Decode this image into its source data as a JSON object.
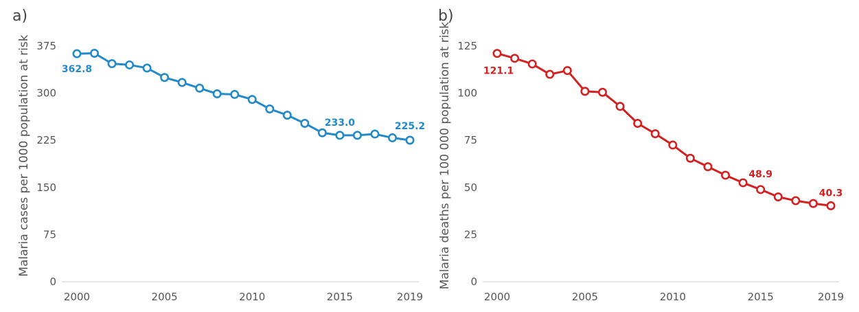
{
  "chart_data": [
    {
      "type": "line",
      "panel_label": "a)",
      "title": "",
      "xlabel": "",
      "ylabel": "Malaria cases per 1000 population at risk",
      "color": "#2389c8",
      "ylim": [
        0,
        375
      ],
      "yticks": [
        0,
        75,
        150,
        225,
        300,
        375
      ],
      "xticks": [
        2000,
        2005,
        2010,
        2015,
        2019
      ],
      "x": [
        2000,
        2001,
        2002,
        2003,
        2004,
        2005,
        2006,
        2007,
        2008,
        2009,
        2010,
        2011,
        2012,
        2013,
        2014,
        2015,
        2016,
        2017,
        2018,
        2019
      ],
      "series": [
        {
          "values": [
            362.8,
            363.5,
            347,
            345,
            340,
            325,
            317,
            308,
            299,
            298,
            290,
            275,
            265,
            252,
            237,
            233.0,
            233,
            235,
            229,
            225.2
          ]
        }
      ],
      "data_labels": [
        {
          "x": 2000,
          "y": 362.8,
          "text": "362.8"
        },
        {
          "x": 2015,
          "y": 233.0,
          "text": "233.0"
        },
        {
          "x": 2019,
          "y": 225.2,
          "text": "225.2"
        }
      ]
    },
    {
      "type": "line",
      "panel_label": "b)",
      "title": "",
      "xlabel": "",
      "ylabel": "Malaria deaths per 100 000 population at risk",
      "color": "#d42020",
      "ylim": [
        0,
        125
      ],
      "yticks": [
        0,
        25,
        50,
        75,
        100,
        125
      ],
      "xticks": [
        2000,
        2005,
        2010,
        2015,
        2019
      ],
      "x": [
        2000,
        2001,
        2002,
        2003,
        2004,
        2005,
        2006,
        2007,
        2008,
        2009,
        2010,
        2011,
        2012,
        2013,
        2014,
        2015,
        2016,
        2017,
        2018,
        2019
      ],
      "series": [
        {
          "values": [
            121.1,
            118.5,
            115.5,
            110,
            112,
            101,
            100.5,
            93,
            84,
            78.5,
            72.5,
            65.5,
            61,
            56.5,
            52.5,
            48.9,
            45,
            43,
            41.5,
            40.3
          ]
        }
      ],
      "data_labels": [
        {
          "x": 2000,
          "y": 121.1,
          "text": "121.1"
        },
        {
          "x": 2015,
          "y": 48.9,
          "text": "48.9"
        },
        {
          "x": 2019,
          "y": 40.3,
          "text": "40.3"
        }
      ]
    }
  ]
}
